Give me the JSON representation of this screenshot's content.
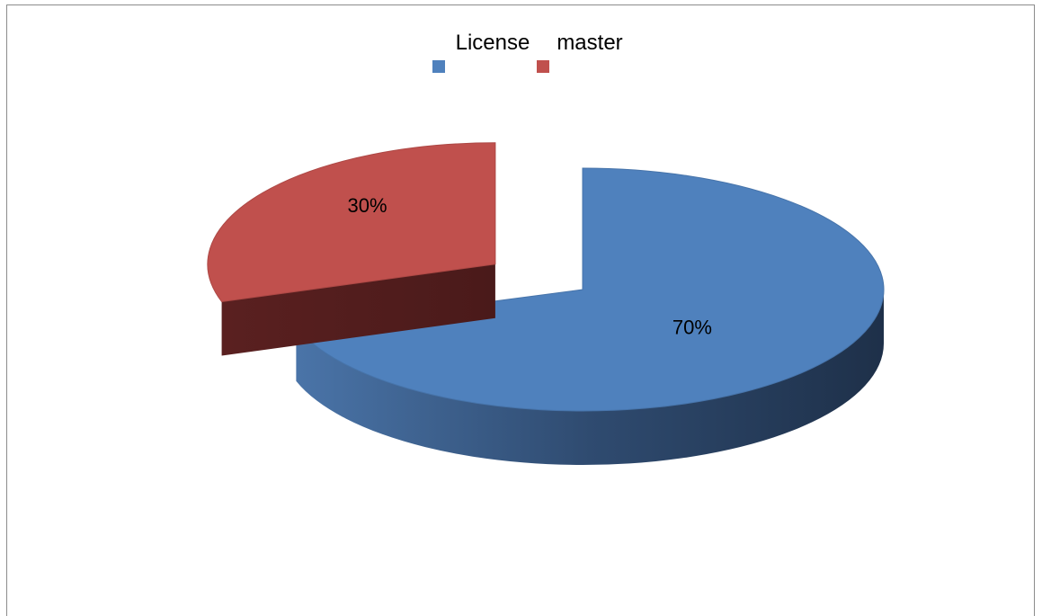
{
  "chart_data": {
    "type": "pie",
    "style": "3d-exploded",
    "categories": [
      "License",
      "master"
    ],
    "values": [
      70,
      30
    ],
    "data_labels": [
      "70%",
      "30%"
    ],
    "colors": [
      "#4f81bd",
      "#c0504d"
    ],
    "legend_position": "top"
  }
}
